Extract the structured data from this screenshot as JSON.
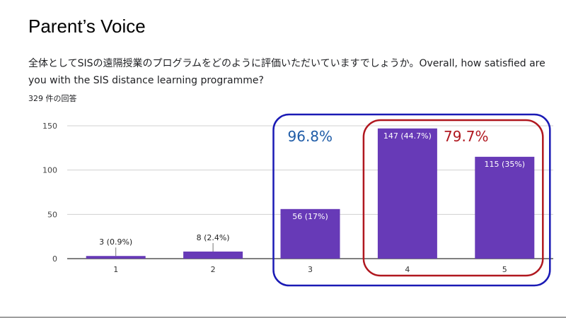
{
  "slide": {
    "title": "Parent’s Voice"
  },
  "survey": {
    "question": "全体としてSISの遠隔授業のプログラムをどのように評価いただいていますでしょうか。Overall, how satisfied are you with the SIS distance learning programme?",
    "response_count": "329 件の回答"
  },
  "chart_data": {
    "type": "bar",
    "categories": [
      "1",
      "2",
      "3",
      "4",
      "5"
    ],
    "values": [
      3,
      8,
      56,
      147,
      115
    ],
    "data_labels": [
      "3 (0.9%)",
      "8 (2.4%)",
      "56 (17%)",
      "147 (44.7%)",
      "115 (35%)"
    ],
    "y_ticks": [
      0,
      50,
      100,
      150
    ],
    "ylim": [
      0,
      150
    ],
    "grid": true,
    "bar_color": "#673ab7",
    "annotations": [
      {
        "text": "96.8%",
        "color": "#1f5ca8",
        "categories": [
          "3",
          "4",
          "5"
        ],
        "outline_color": "#1a1ab5"
      },
      {
        "text": "79.7%",
        "color": "#b0171f",
        "categories": [
          "4",
          "5"
        ],
        "outline_color": "#b0171f"
      }
    ]
  }
}
